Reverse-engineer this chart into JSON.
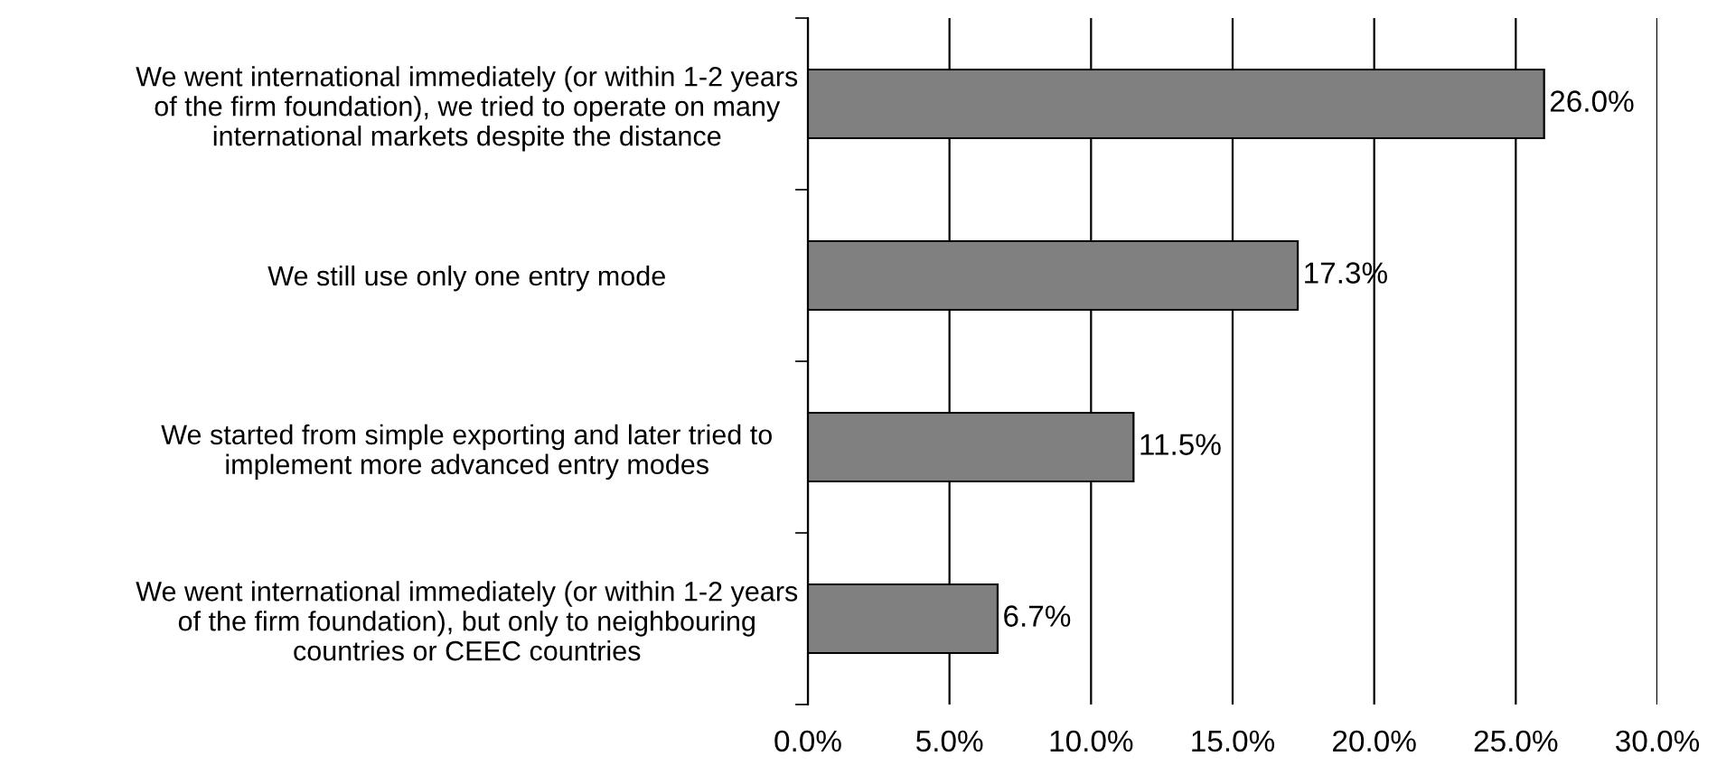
{
  "chart_data": {
    "type": "bar",
    "orientation": "horizontal",
    "categories": [
      "We went international immediately (or within 1-2 years\nof the firm foundation), we tried to operate on many\ninternational markets despite the distance",
      "We still use only one entry mode",
      "We started from simple exporting and later tried to\nimplement more advanced entry modes",
      "We went international immediately (or within 1-2 years\nof the firm foundation), but only to neighbouring\ncountries or CEEC countries"
    ],
    "values": [
      26.0,
      17.3,
      11.5,
      6.7
    ],
    "value_labels": [
      "26.0%",
      "17.3%",
      "11.5%",
      "6.7%"
    ],
    "color": "#808080",
    "xlim": [
      0,
      30
    ],
    "xticks": [
      {
        "value": 0,
        "label": "0.0%"
      },
      {
        "value": 5,
        "label": "5.0%"
      },
      {
        "value": 10,
        "label": "10.0%"
      },
      {
        "value": 15,
        "label": "15.0%"
      },
      {
        "value": 20,
        "label": "20.0%"
      },
      {
        "value": 25,
        "label": "25.0%"
      },
      {
        "value": 30,
        "label": "30.0%"
      }
    ],
    "grid": "x",
    "legend": false
  }
}
